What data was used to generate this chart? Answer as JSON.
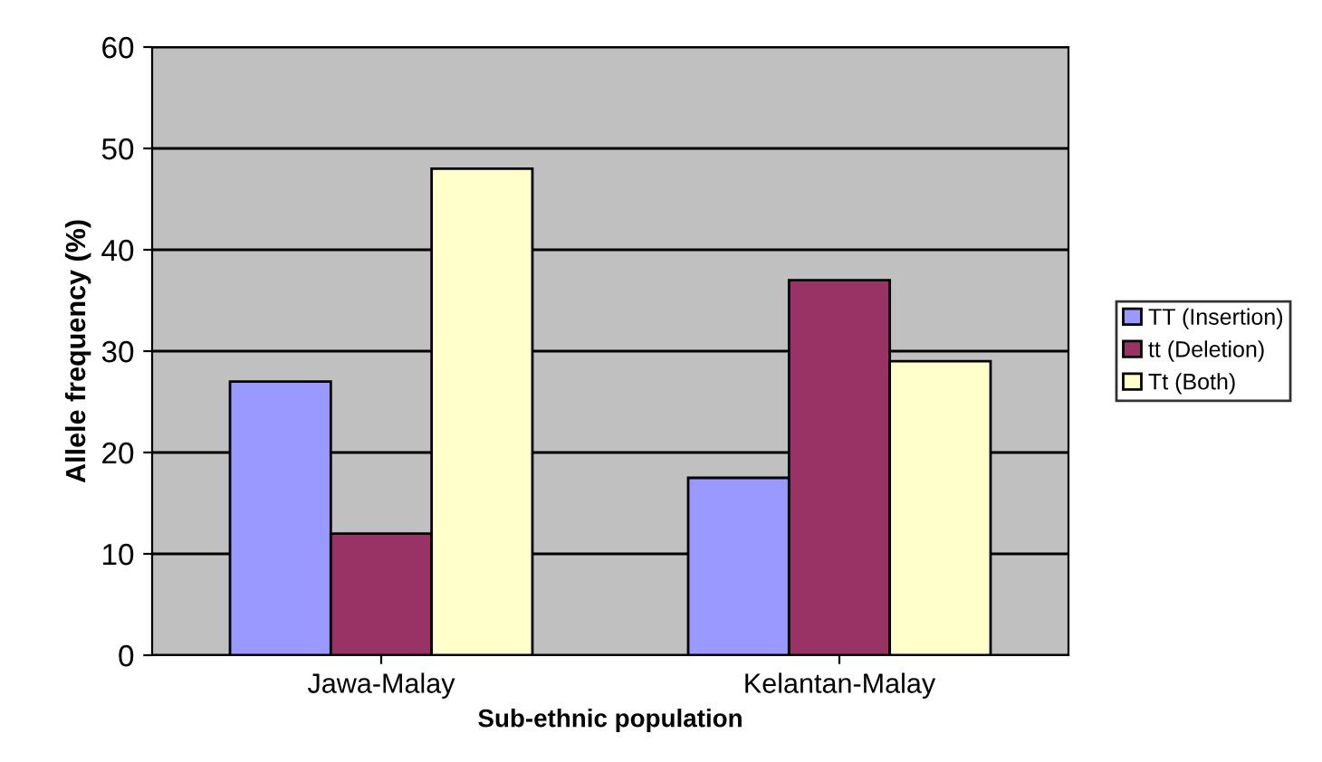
{
  "chart_data": {
    "type": "bar",
    "xlabel": "Sub-ethnic population",
    "ylabel": "Allele frequency (%)",
    "categories": [
      "Jawa-Malay",
      "Kelantan-Malay"
    ],
    "series": [
      {
        "name": "TT (Insertion)",
        "color": "#9999ff",
        "values": [
          27,
          17.5
        ]
      },
      {
        "name": "tt (Deletion)",
        "color": "#993366",
        "values": [
          12,
          37
        ]
      },
      {
        "name": "Tt (Both)",
        "color": "#ffffcc",
        "values": [
          48,
          29
        ]
      }
    ],
    "ylim": [
      0,
      60
    ],
    "yticks": [
      0,
      10,
      20,
      30,
      40,
      50,
      60
    ],
    "grid": "y",
    "legend": "right"
  }
}
